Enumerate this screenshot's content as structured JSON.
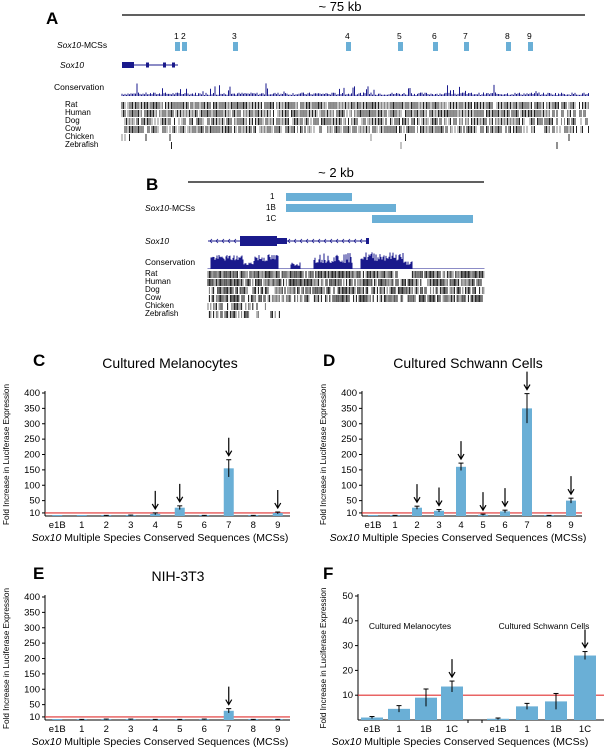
{
  "figure": {
    "panel_a": {
      "letter": "A",
      "scale": "~ 75 kb",
      "mcs_label_italic": "Sox10",
      "mcs_label_rest": "-MCSs",
      "gene_label": "Sox10",
      "conservation_label": "Conservation",
      "mcs_ids": [
        "1",
        "2",
        "3",
        "4",
        "5",
        "6",
        "7",
        "8",
        "9"
      ],
      "species": [
        "Rat",
        "Human",
        "Dog",
        "Cow",
        "Chicken",
        "Zebrafish"
      ]
    },
    "panel_b": {
      "letter": "B",
      "scale": "~ 2 kb",
      "mcs_label_italic": "Sox10",
      "mcs_label_rest": "-MCSs",
      "gene_label": "Sox10",
      "conservation_label": "Conservation",
      "mcs_ids": [
        "1",
        "1B",
        "1C"
      ],
      "species": [
        "Rat",
        "Human",
        "Dog",
        "Cow",
        "Chicken",
        "Zebrafish"
      ]
    },
    "colors": {
      "bar": "#6aafd6",
      "threshold": "#e03030",
      "track": "#1a1a8c"
    }
  },
  "chart_data": [
    {
      "panel": "C",
      "type": "bar",
      "title": "Cultured Melanocytes",
      "ylabel": "Fold Increase in Luciferase Expression",
      "xlabel_italic": "Sox10",
      "xlabel_rest": " Multiple Species Conserved Sequences (MCSs)",
      "categories": [
        "e1B",
        "1",
        "2",
        "3",
        "4",
        "5",
        "6",
        "7",
        "8",
        "9"
      ],
      "values": [
        0,
        0,
        1,
        2,
        7,
        27,
        1,
        155,
        1,
        10
      ],
      "errors": [
        0,
        0,
        1,
        1,
        3,
        6,
        1,
        28,
        1,
        3
      ],
      "arrows": [
        "4",
        "5",
        "7",
        "9"
      ],
      "yticks": [
        10,
        50,
        100,
        150,
        200,
        250,
        300,
        350,
        400
      ],
      "ylim": [
        0,
        400
      ],
      "threshold": 10
    },
    {
      "panel": "D",
      "type": "bar",
      "title": "Cultured Schwann Cells",
      "ylabel": "Fold Increase in Luciferase Expression",
      "xlabel_italic": "Sox10",
      "xlabel_rest": " Multiple Species Conserved Sequences (MCSs)",
      "categories": [
        "e1B",
        "1",
        "2",
        "3",
        "4",
        "5",
        "6",
        "7",
        "8",
        "9"
      ],
      "values": [
        0,
        1,
        27,
        17,
        160,
        4,
        15,
        350,
        1,
        50
      ],
      "errors": [
        0,
        1,
        5,
        4,
        12,
        2,
        4,
        48,
        1,
        8
      ],
      "arrows": [
        "2",
        "3",
        "4",
        "5",
        "6",
        "7",
        "9"
      ],
      "yticks": [
        10,
        50,
        100,
        150,
        200,
        250,
        300,
        350,
        400
      ],
      "ylim": [
        0,
        400
      ],
      "threshold": 10
    },
    {
      "panel": "E",
      "type": "bar",
      "title": "NIH-3T3",
      "ylabel": "Fold Increase in Luciferase Expression",
      "xlabel_italic": "Sox10",
      "xlabel_rest": " Multiple Species Conserved Sequences (MCSs)",
      "categories": [
        "e1B",
        "1",
        "2",
        "3",
        "4",
        "5",
        "6",
        "7",
        "8",
        "9"
      ],
      "values": [
        0,
        1,
        2,
        2,
        1,
        1,
        2,
        30,
        1,
        1
      ],
      "errors": [
        0,
        1,
        1,
        1,
        1,
        1,
        1,
        7,
        1,
        1
      ],
      "arrows": [
        "7"
      ],
      "yticks": [
        10,
        50,
        100,
        150,
        200,
        250,
        300,
        350,
        400
      ],
      "ylim": [
        0,
        400
      ],
      "threshold": 10
    },
    {
      "panel": "F",
      "type": "bar",
      "title": "",
      "group_labels": [
        "Cultured Melanocytes",
        "Cultured Schwann Cells"
      ],
      "ylabel": "Fold Increase in Luciferase Expression",
      "xlabel_italic": "Sox10",
      "xlabel_rest": " Multiple Species Conserved Sequences (MCSs)",
      "categories": [
        "e1B",
        "1",
        "1B",
        "1C",
        "e1B",
        "1",
        "1B",
        "1C"
      ],
      "values": [
        1,
        4.5,
        9,
        13.5,
        0.5,
        5.5,
        7.5,
        26
      ],
      "errors": [
        0.4,
        1.3,
        3.5,
        2.2,
        0.3,
        1.2,
        3.2,
        1.6
      ],
      "arrows": [
        3,
        7
      ],
      "yticks": [
        10,
        20,
        30,
        40,
        50
      ],
      "ylim": [
        0,
        50
      ],
      "threshold": 10
    }
  ]
}
